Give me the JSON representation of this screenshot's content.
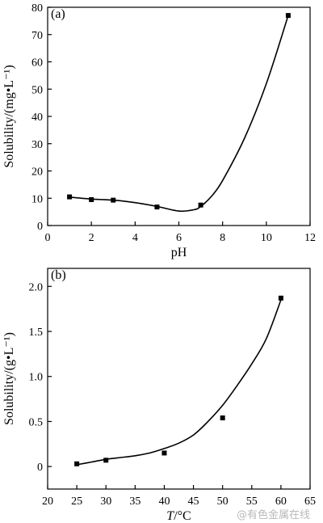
{
  "watermark": "@有色金属在线",
  "chart_data": [
    {
      "type": "scatter",
      "panel_label": "(a)",
      "xlabel": "pH",
      "ylabel": "Solubility/(mg•L⁻¹)",
      "xlim": [
        0,
        12
      ],
      "ylim": [
        0,
        80
      ],
      "xticks": [
        "0",
        "2",
        "4",
        "6",
        "8",
        "10",
        "12"
      ],
      "yticks": [
        "0",
        "10",
        "20",
        "30",
        "40",
        "50",
        "60",
        "70",
        "80"
      ],
      "grid": false,
      "marker": "square",
      "points": [
        {
          "x": 1,
          "y": 10.5
        },
        {
          "x": 2,
          "y": 9.5
        },
        {
          "x": 3,
          "y": 9.3
        },
        {
          "x": 5,
          "y": 6.8
        },
        {
          "x": 7,
          "y": 7.5
        },
        {
          "x": 11,
          "y": 77.0
        }
      ],
      "fit_curve": [
        {
          "x": 1,
          "y": 10.4
        },
        {
          "x": 2,
          "y": 9.7
        },
        {
          "x": 3,
          "y": 9.3
        },
        {
          "x": 4,
          "y": 8.4
        },
        {
          "x": 5,
          "y": 7.0
        },
        {
          "x": 6,
          "y": 5.3
        },
        {
          "x": 6.7,
          "y": 5.8
        },
        {
          "x": 7,
          "y": 7.0
        },
        {
          "x": 7.5,
          "y": 10.8
        },
        {
          "x": 8,
          "y": 16.5
        },
        {
          "x": 9,
          "y": 32.0
        },
        {
          "x": 10,
          "y": 52.0
        },
        {
          "x": 11,
          "y": 77.0
        }
      ]
    },
    {
      "type": "scatter",
      "panel_label": "(b)",
      "xlabel": "T/°C",
      "ylabel": "Solubility/(g•L⁻¹)",
      "xlim": [
        20,
        65
      ],
      "ylim": [
        -0.25,
        2.2
      ],
      "xticks": [
        "20",
        "25",
        "30",
        "35",
        "40",
        "45",
        "50",
        "55",
        "60",
        "65"
      ],
      "yticks": [
        "0",
        "0.5",
        "1.0",
        "1.5",
        "2.0"
      ],
      "grid": false,
      "marker": "square",
      "points": [
        {
          "x": 25,
          "y": 0.03
        },
        {
          "x": 30,
          "y": 0.07
        },
        {
          "x": 40,
          "y": 0.15
        },
        {
          "x": 50,
          "y": 0.54
        },
        {
          "x": 60,
          "y": 1.87
        }
      ],
      "fit_curve": [
        {
          "x": 25,
          "y": 0.02
        },
        {
          "x": 27.5,
          "y": 0.05
        },
        {
          "x": 30,
          "y": 0.08
        },
        {
          "x": 32.5,
          "y": 0.1
        },
        {
          "x": 35,
          "y": 0.12
        },
        {
          "x": 37.5,
          "y": 0.15
        },
        {
          "x": 40,
          "y": 0.2
        },
        {
          "x": 42.5,
          "y": 0.26
        },
        {
          "x": 45,
          "y": 0.35
        },
        {
          "x": 47.5,
          "y": 0.5
        },
        {
          "x": 50,
          "y": 0.68
        },
        {
          "x": 52.5,
          "y": 0.9
        },
        {
          "x": 55,
          "y": 1.14
        },
        {
          "x": 57.5,
          "y": 1.42
        },
        {
          "x": 60,
          "y": 1.85
        }
      ]
    }
  ]
}
